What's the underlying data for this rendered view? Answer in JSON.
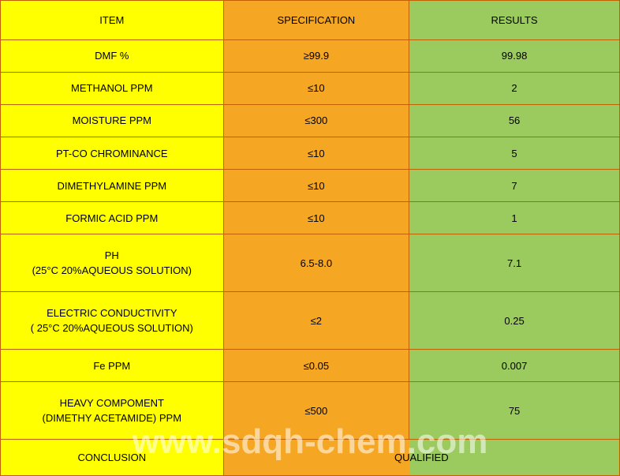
{
  "columns": {
    "item_bg": "#ffff00",
    "spec_bg": "#f5a623",
    "result_bg": "#9bca5e",
    "border_color": "#c06000"
  },
  "header": {
    "item": "ITEM",
    "spec": "SPECIFICATION",
    "result": "RESULTS"
  },
  "rows": [
    {
      "item": "DMF %",
      "spec": "≥99.9",
      "result": "99.98",
      "tall": false
    },
    {
      "item": "METHANOL PPM",
      "spec": "≤10",
      "result": "2",
      "tall": false
    },
    {
      "item": "MOISTURE PPM",
      "spec": "≤300",
      "result": "56",
      "tall": false
    },
    {
      "item": "PT-CO CHROMINANCE",
      "spec": "≤10",
      "result": "5",
      "tall": false
    },
    {
      "item": "DIMETHYLAMINE PPM",
      "spec": "≤10",
      "result": "7",
      "tall": false
    },
    {
      "item": "FORMIC ACID PPM",
      "spec": "≤10",
      "result": "1",
      "tall": false
    },
    {
      "item": "PH\n(25°C 20%AQUEOUS SOLUTION)",
      "spec": "6.5-8.0",
      "result": "7.1",
      "tall": true
    },
    {
      "item": "ELECTRIC CONDUCTIVITY\n( 25°C 20%AQUEOUS SOLUTION)",
      "spec": "≤2",
      "result": "0.25",
      "tall": true
    },
    {
      "item": "Fe PPM",
      "spec": "≤0.05",
      "result": "0.007",
      "tall": false
    },
    {
      "item": "HEAVY COMPOMENT\n(DIMETHY ACETAMIDE) PPM",
      "spec": "≤500",
      "result": "75",
      "tall": true
    }
  ],
  "conclusion": {
    "label": "CONCLUSION",
    "value": "QUALIFIED"
  },
  "watermark": "www.sdqh-chem.com"
}
